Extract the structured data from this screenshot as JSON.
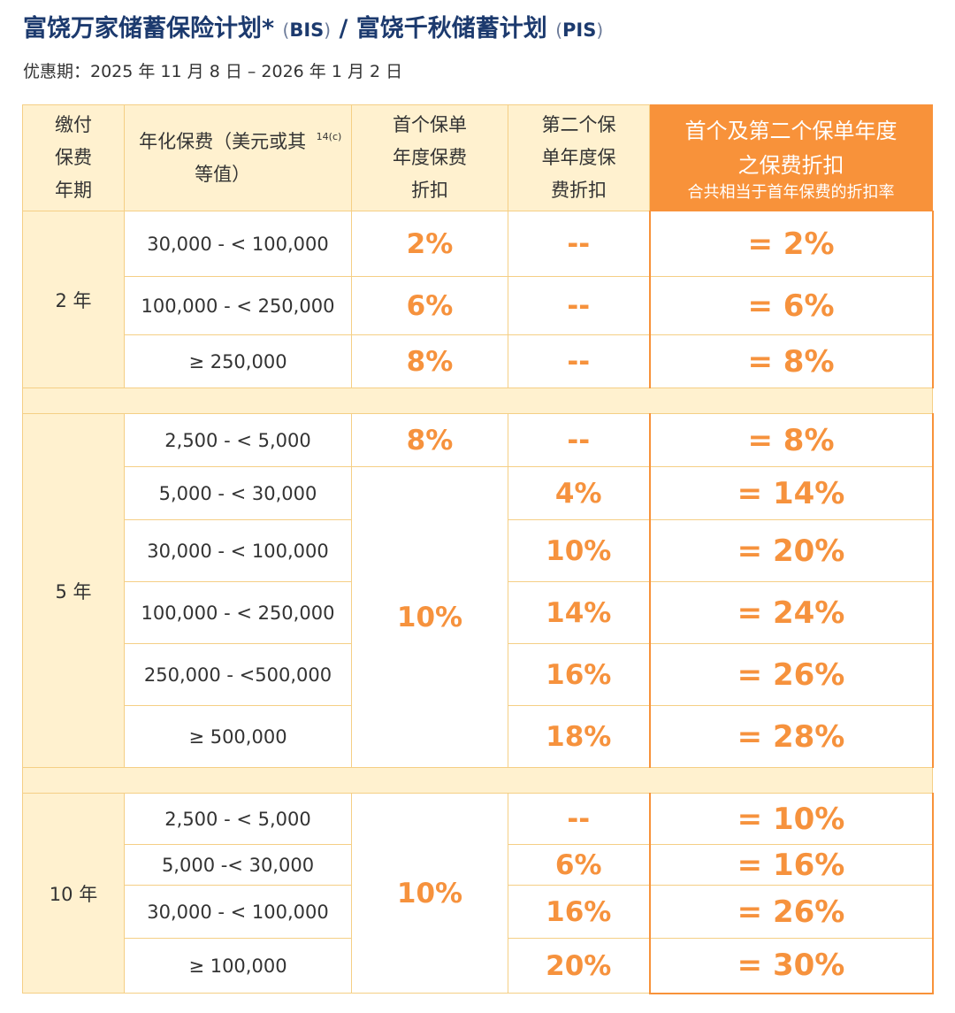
{
  "title": {
    "main": "富饶万家储蓄保险计划*",
    "bis": "BIS",
    "sep": " / ",
    "second": "富饶千秋储蓄计划",
    "pis": "PIS"
  },
  "period": "优惠期：2025 年 11 月 8 日 – 2026 年 1 月 2 日",
  "header": {
    "term": "缴付保费年期",
    "premium": "年化保费（美元或其等值）",
    "premium_note": "14(c)",
    "first": "首个保单年度保费折扣",
    "second": "第二个保单年度保费折扣",
    "combined": "首个及第二个保单年度之保费折扣",
    "combined_sub": "合共相当于首年保费的折扣率"
  },
  "groups": [
    {
      "term": "2 年",
      "rows": [
        {
          "range": "30,000 - < 100,000",
          "first": "2%",
          "second": "--",
          "total": "= 2%"
        },
        {
          "range": "100,000 - < 250,000",
          "first": "6%",
          "second": "--",
          "total": "= 6%"
        },
        {
          "range": "≥ 250,000",
          "first": "8%",
          "second": "--",
          "total": "= 8%"
        }
      ]
    },
    {
      "term": "5 年",
      "rows": [
        {
          "range": "2,500 - < 5,000",
          "first": "8%",
          "second": "--",
          "total": "= 8%"
        },
        {
          "range": "5,000 - < 30,000",
          "first": "10%",
          "second": "4%",
          "total": "= 14%"
        },
        {
          "range": "30,000 - < 100,000",
          "second": "10%",
          "total": "= 20%"
        },
        {
          "range": "100,000 - < 250,000",
          "second": "14%",
          "total": "= 24%"
        },
        {
          "range": "250,000 - <500,000",
          "second": "16%",
          "total": "= 26%"
        },
        {
          "range": "≥ 500,000",
          "second": "18%",
          "total": "= 28%"
        }
      ]
    },
    {
      "term": "10 年",
      "rows": [
        {
          "range": "2,500 - < 5,000",
          "first": "10%",
          "second": "--",
          "total": "= 10%"
        },
        {
          "range": "5,000 -< 30,000",
          "second": "6%",
          "total": "= 16%"
        },
        {
          "range": "30,000 - < 100,000",
          "second": "16%",
          "total": "= 26%"
        },
        {
          "range": "≥ 100,000",
          "second": "20%",
          "total": "= 30%"
        }
      ]
    }
  ],
  "colors": {
    "title": "#1c3a6e",
    "accent": "#f8923a",
    "cream": "#fff1cf",
    "border": "#f5cf85"
  }
}
